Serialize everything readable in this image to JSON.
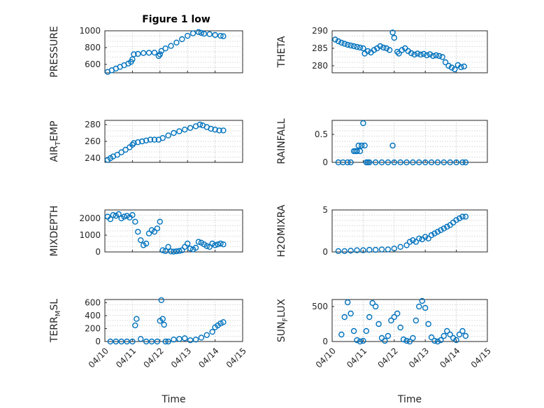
{
  "figure": {
    "title": "Figure 1 low"
  },
  "colors": {
    "marker": "#0072BD",
    "axis": "#262626",
    "grid": "#b0b0b0"
  },
  "chart_data": [
    {
      "type": "scatter",
      "name": "pressure",
      "ylabel": "PRESSURE",
      "ylabel_sub": "",
      "title": "Figure 1 low",
      "xlabel": "",
      "grid": true,
      "xlim": [
        0,
        5
      ],
      "ylim": [
        500,
        1000
      ],
      "yticks": [
        600,
        800,
        1000
      ],
      "x": [
        0.1,
        0.25,
        0.4,
        0.55,
        0.7,
        0.85,
        0.95,
        1.0,
        1.05,
        1.2,
        1.4,
        1.6,
        1.8,
        1.95,
        2.0,
        2.05,
        2.2,
        2.4,
        2.6,
        2.8,
        3.0,
        3.2,
        3.4,
        3.5,
        3.6,
        3.8,
        4.0,
        4.2,
        4.3
      ],
      "y": [
        510,
        530,
        550,
        570,
        590,
        610,
        630,
        660,
        720,
        725,
        735,
        738,
        740,
        700,
        720,
        760,
        790,
        820,
        860,
        900,
        940,
        970,
        985,
        975,
        965,
        960,
        950,
        940,
        935
      ]
    },
    {
      "type": "scatter",
      "name": "theta",
      "ylabel": "THETA",
      "ylabel_sub": "",
      "title": "",
      "xlabel": "",
      "grid": true,
      "xlim": [
        0,
        5
      ],
      "ylim": [
        278,
        290
      ],
      "yticks": [
        280,
        285,
        290
      ],
      "x": [
        0.1,
        0.2,
        0.3,
        0.4,
        0.5,
        0.6,
        0.7,
        0.8,
        0.9,
        1.0,
        1.05,
        1.15,
        1.25,
        1.35,
        1.45,
        1.55,
        1.65,
        1.75,
        1.85,
        1.95,
        2.0,
        2.1,
        2.15,
        2.25,
        2.35,
        2.45,
        2.55,
        2.65,
        2.75,
        2.85,
        2.95,
        3.05,
        3.15,
        3.25,
        3.35,
        3.45,
        3.55,
        3.65,
        3.75,
        3.85,
        3.95,
        4.05,
        4.15,
        4.25
      ],
      "y": [
        287.5,
        287,
        286.6,
        286.3,
        286,
        285.8,
        285.6,
        285.4,
        285.2,
        285,
        283.5,
        284.2,
        283.8,
        284.5,
        285,
        285.6,
        285.2,
        285,
        284.5,
        289.5,
        288,
        284,
        283.5,
        284.5,
        285,
        284.2,
        283.6,
        283.2,
        283.5,
        283.2,
        283.4,
        283,
        283.3,
        282.8,
        283,
        282.8,
        282.5,
        281,
        280,
        279.5,
        279,
        280.2,
        279.6,
        279.8
      ]
    },
    {
      "type": "scatter",
      "name": "air_temp",
      "ylabel": "AIR",
      "ylabel_sub": "T",
      "ylabel_tail": "EMP",
      "title": "",
      "xlabel": "",
      "grid": true,
      "xlim": [
        0,
        5
      ],
      "ylim": [
        235,
        285
      ],
      "yticks": [
        240,
        260,
        280
      ],
      "x": [
        0.1,
        0.2,
        0.3,
        0.45,
        0.6,
        0.75,
        0.9,
        1.0,
        1.05,
        1.2,
        1.35,
        1.5,
        1.65,
        1.8,
        1.95,
        2.1,
        2.3,
        2.5,
        2.7,
        2.9,
        3.1,
        3.3,
        3.45,
        3.55,
        3.7,
        3.85,
        4.0,
        4.15,
        4.3
      ],
      "y": [
        238,
        240,
        242,
        244,
        247,
        250,
        253,
        256,
        258,
        259,
        260,
        261,
        262,
        262,
        262,
        264,
        267,
        270,
        272,
        274,
        276,
        278,
        280,
        279,
        277,
        275,
        274,
        273,
        273
      ]
    },
    {
      "type": "scatter",
      "name": "rainfall",
      "ylabel": "RAINFALL",
      "ylabel_sub": "",
      "title": "",
      "xlabel": "",
      "grid": true,
      "xlim": [
        0,
        5
      ],
      "ylim": [
        0,
        0.75
      ],
      "yticks": [
        0,
        0.5
      ],
      "x": [
        0.2,
        0.35,
        0.5,
        0.6,
        0.7,
        0.75,
        0.8,
        0.85,
        0.9,
        0.95,
        1.0,
        1.05,
        1.1,
        1.15,
        1.2,
        1.4,
        1.6,
        1.8,
        1.95,
        2.0,
        2.2,
        2.4,
        2.6,
        2.8,
        3.0,
        3.2,
        3.4,
        3.6,
        3.8,
        4.0,
        4.2,
        4.3
      ],
      "y": [
        0,
        0,
        0,
        0,
        0.2,
        0.2,
        0.2,
        0.3,
        0.2,
        0.3,
        0.7,
        0.3,
        0,
        0,
        0,
        0,
        0,
        0,
        0.3,
        0,
        0,
        0,
        0,
        0,
        0,
        0,
        0,
        0,
        0,
        0,
        0,
        0
      ]
    },
    {
      "type": "scatter",
      "name": "mixdepth",
      "ylabel": "MIXDEPTH",
      "ylabel_sub": "",
      "title": "",
      "xlabel": "",
      "grid": true,
      "xlim": [
        0,
        5
      ],
      "ylim": [
        0,
        2500
      ],
      "yticks": [
        0,
        1000,
        2000
      ],
      "x": [
        0.1,
        0.2,
        0.3,
        0.4,
        0.5,
        0.6,
        0.7,
        0.8,
        0.9,
        1.0,
        1.1,
        1.2,
        1.3,
        1.4,
        1.5,
        1.6,
        1.7,
        1.8,
        1.9,
        2.0,
        2.1,
        2.2,
        2.3,
        2.4,
        2.5,
        2.6,
        2.7,
        2.8,
        2.9,
        3.0,
        3.1,
        3.2,
        3.3,
        3.4,
        3.5,
        3.6,
        3.7,
        3.8,
        3.9,
        4.0,
        4.1,
        4.2,
        4.3
      ],
      "y": [
        2100,
        1950,
        2200,
        2150,
        2250,
        2000,
        2100,
        2150,
        2050,
        2200,
        1800,
        1200,
        700,
        400,
        500,
        1100,
        1300,
        1200,
        1400,
        1800,
        100,
        50,
        300,
        30,
        20,
        40,
        60,
        100,
        300,
        500,
        200,
        150,
        250,
        600,
        550,
        450,
        350,
        300,
        500,
        400,
        450,
        500,
        450
      ]
    },
    {
      "type": "scatter",
      "name": "h2omixra",
      "ylabel": "H2OMIXRA",
      "ylabel_sub": "",
      "title": "",
      "xlabel": "",
      "grid": true,
      "xlim": [
        0,
        5
      ],
      "ylim": [
        0,
        5
      ],
      "yticks": [
        0,
        5
      ],
      "x": [
        0.2,
        0.4,
        0.6,
        0.8,
        1.0,
        1.2,
        1.4,
        1.6,
        1.8,
        2.0,
        2.2,
        2.4,
        2.5,
        2.6,
        2.7,
        2.8,
        2.9,
        3.0,
        3.1,
        3.2,
        3.3,
        3.4,
        3.5,
        3.6,
        3.7,
        3.8,
        3.9,
        4.0,
        4.1,
        4.2,
        4.3
      ],
      "y": [
        0.1,
        0.1,
        0.15,
        0.2,
        0.2,
        0.25,
        0.25,
        0.3,
        0.3,
        0.4,
        0.6,
        0.8,
        1.2,
        1.4,
        1.2,
        1.6,
        1.5,
        1.8,
        1.6,
        2.0,
        2.2,
        2.4,
        2.6,
        2.8,
        3.0,
        3.2,
        3.5,
        3.8,
        4.0,
        4.2,
        4.2
      ]
    },
    {
      "type": "scatter",
      "name": "terr_msl",
      "ylabel": "TERR",
      "ylabel_sub": "M",
      "ylabel_tail": "SL",
      "title": "",
      "xlabel": "Time",
      "grid": true,
      "xlim": [
        0,
        5
      ],
      "ylim": [
        0,
        650
      ],
      "yticks": [
        0,
        200,
        400,
        600
      ],
      "xticklabels": [
        "04/10",
        "04/11",
        "04/12",
        "04/13",
        "04/14",
        "04/15"
      ],
      "x": [
        0.2,
        0.4,
        0.6,
        0.8,
        1.0,
        1.1,
        1.15,
        1.3,
        1.5,
        1.7,
        1.9,
        2.0,
        2.05,
        2.1,
        2.15,
        2.2,
        2.3,
        2.5,
        2.7,
        2.9,
        3.1,
        3.3,
        3.5,
        3.7,
        3.9,
        4.0,
        4.1,
        4.2,
        4.3
      ],
      "y": [
        0,
        0,
        0,
        0,
        0,
        250,
        350,
        40,
        0,
        0,
        0,
        320,
        640,
        350,
        260,
        0,
        0,
        30,
        40,
        50,
        20,
        30,
        60,
        100,
        150,
        220,
        250,
        280,
        300
      ]
    },
    {
      "type": "scatter",
      "name": "sun_flux",
      "ylabel": "SUN",
      "ylabel_sub": "F",
      "ylabel_tail": "LUX",
      "title": "",
      "xlabel": "Time",
      "grid": true,
      "xlim": [
        0,
        5
      ],
      "ylim": [
        0,
        600
      ],
      "yticks": [
        0,
        500
      ],
      "xticklabels": [
        "04/10",
        "04/11",
        "04/12",
        "04/13",
        "04/14",
        "04/15"
      ],
      "x": [
        0.3,
        0.4,
        0.5,
        0.6,
        0.7,
        0.8,
        0.9,
        1.0,
        1.1,
        1.2,
        1.3,
        1.4,
        1.5,
        1.6,
        1.7,
        1.8,
        1.9,
        2.0,
        2.1,
        2.2,
        2.3,
        2.4,
        2.5,
        2.6,
        2.7,
        2.8,
        2.9,
        3.0,
        3.1,
        3.2,
        3.3,
        3.4,
        3.5,
        3.6,
        3.7,
        3.8,
        3.9,
        4.0,
        4.1,
        4.2,
        4.3
      ],
      "y": [
        100,
        350,
        560,
        400,
        150,
        20,
        0,
        10,
        150,
        350,
        550,
        500,
        250,
        50,
        10,
        80,
        300,
        350,
        400,
        200,
        30,
        10,
        0,
        50,
        300,
        500,
        580,
        480,
        250,
        60,
        10,
        0,
        20,
        80,
        150,
        100,
        50,
        20,
        100,
        150,
        80
      ]
    }
  ]
}
